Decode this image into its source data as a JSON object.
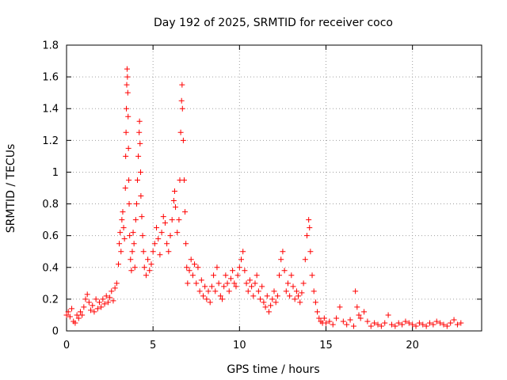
{
  "chart_data": {
    "type": "scatter",
    "title": "Day 192 of 2025, SRMTID for receiver coco",
    "xlabel": "GPS time / hours",
    "ylabel": "SRMTID / TECUs",
    "xlim": [
      0,
      24
    ],
    "ylim": [
      0,
      1.8
    ],
    "x_ticks": [
      0,
      5,
      10,
      15,
      20
    ],
    "x_tick_labels": [
      "0",
      "5",
      "10",
      "15",
      "20"
    ],
    "y_ticks": [
      0,
      0.2,
      0.4,
      0.6,
      0.8,
      1.0,
      1.2,
      1.4,
      1.6,
      1.8
    ],
    "y_tick_labels": [
      "0",
      "0.2",
      "0.4",
      "0.6",
      "0.8",
      "1",
      "1.2",
      "1.4",
      "1.6",
      "1.8"
    ],
    "grid": true,
    "marker": "+",
    "color": "#ff0000",
    "series": [
      {
        "name": "SRMTID",
        "points": [
          [
            0.0,
            0.1
          ],
          [
            0.1,
            0.12
          ],
          [
            0.2,
            0.09
          ],
          [
            0.3,
            0.14
          ],
          [
            0.4,
            0.06
          ],
          [
            0.5,
            0.05
          ],
          [
            0.6,
            0.1
          ],
          [
            0.7,
            0.08
          ],
          [
            0.8,
            0.12
          ],
          [
            0.9,
            0.1
          ],
          [
            1.0,
            0.15
          ],
          [
            1.1,
            0.2
          ],
          [
            1.2,
            0.23
          ],
          [
            1.3,
            0.18
          ],
          [
            1.4,
            0.13
          ],
          [
            1.5,
            0.16
          ],
          [
            1.6,
            0.12
          ],
          [
            1.7,
            0.2
          ],
          [
            1.8,
            0.14
          ],
          [
            1.9,
            0.18
          ],
          [
            2.0,
            0.15
          ],
          [
            2.1,
            0.2
          ],
          [
            2.2,
            0.17
          ],
          [
            2.3,
            0.22
          ],
          [
            2.4,
            0.18
          ],
          [
            2.5,
            0.21
          ],
          [
            2.6,
            0.25
          ],
          [
            2.7,
            0.19
          ],
          [
            2.8,
            0.27
          ],
          [
            2.9,
            0.3
          ],
          [
            3.0,
            0.42
          ],
          [
            3.05,
            0.55
          ],
          [
            3.1,
            0.62
          ],
          [
            3.15,
            0.5
          ],
          [
            3.2,
            0.7
          ],
          [
            3.25,
            0.75
          ],
          [
            3.3,
            0.65
          ],
          [
            3.35,
            0.58
          ],
          [
            3.4,
            0.9
          ],
          [
            3.42,
            1.1
          ],
          [
            3.44,
            1.25
          ],
          [
            3.46,
            1.4
          ],
          [
            3.48,
            1.55
          ],
          [
            3.5,
            1.65
          ],
          [
            3.52,
            1.6
          ],
          [
            3.54,
            1.5
          ],
          [
            3.56,
            1.35
          ],
          [
            3.58,
            1.15
          ],
          [
            3.6,
            0.95
          ],
          [
            3.62,
            0.8
          ],
          [
            3.65,
            0.6
          ],
          [
            3.7,
            0.45
          ],
          [
            3.75,
            0.38
          ],
          [
            3.8,
            0.5
          ],
          [
            3.85,
            0.62
          ],
          [
            3.9,
            0.55
          ],
          [
            3.95,
            0.4
          ],
          [
            4.0,
            0.7
          ],
          [
            4.05,
            0.8
          ],
          [
            4.1,
            0.95
          ],
          [
            4.15,
            1.1
          ],
          [
            4.2,
            1.25
          ],
          [
            4.22,
            1.32
          ],
          [
            4.25,
            1.18
          ],
          [
            4.28,
            1.0
          ],
          [
            4.3,
            0.85
          ],
          [
            4.35,
            0.72
          ],
          [
            4.4,
            0.6
          ],
          [
            4.45,
            0.5
          ],
          [
            4.5,
            0.4
          ],
          [
            4.6,
            0.35
          ],
          [
            4.7,
            0.45
          ],
          [
            4.8,
            0.38
          ],
          [
            4.9,
            0.42
          ],
          [
            5.0,
            0.5
          ],
          [
            5.1,
            0.55
          ],
          [
            5.2,
            0.65
          ],
          [
            5.3,
            0.58
          ],
          [
            5.4,
            0.48
          ],
          [
            5.5,
            0.62
          ],
          [
            5.6,
            0.72
          ],
          [
            5.7,
            0.68
          ],
          [
            5.8,
            0.55
          ],
          [
            5.9,
            0.5
          ],
          [
            6.0,
            0.6
          ],
          [
            6.1,
            0.7
          ],
          [
            6.2,
            0.82
          ],
          [
            6.25,
            0.88
          ],
          [
            6.3,
            0.78
          ],
          [
            6.4,
            0.62
          ],
          [
            6.5,
            0.7
          ],
          [
            6.55,
            0.95
          ],
          [
            6.6,
            1.25
          ],
          [
            6.65,
            1.45
          ],
          [
            6.68,
            1.55
          ],
          [
            6.7,
            1.4
          ],
          [
            6.75,
            1.2
          ],
          [
            6.8,
            0.95
          ],
          [
            6.85,
            0.75
          ],
          [
            6.9,
            0.55
          ],
          [
            6.95,
            0.4
          ],
          [
            7.0,
            0.3
          ],
          [
            7.1,
            0.38
          ],
          [
            7.2,
            0.45
          ],
          [
            7.3,
            0.35
          ],
          [
            7.4,
            0.42
          ],
          [
            7.5,
            0.3
          ],
          [
            7.6,
            0.4
          ],
          [
            7.7,
            0.25
          ],
          [
            7.8,
            0.32
          ],
          [
            7.9,
            0.22
          ],
          [
            8.0,
            0.28
          ],
          [
            8.1,
            0.2
          ],
          [
            8.2,
            0.25
          ],
          [
            8.3,
            0.18
          ],
          [
            8.4,
            0.28
          ],
          [
            8.5,
            0.35
          ],
          [
            8.6,
            0.25
          ],
          [
            8.7,
            0.4
          ],
          [
            8.8,
            0.3
          ],
          [
            8.9,
            0.22
          ],
          [
            9.0,
            0.2
          ],
          [
            9.1,
            0.28
          ],
          [
            9.2,
            0.35
          ],
          [
            9.3,
            0.3
          ],
          [
            9.4,
            0.25
          ],
          [
            9.5,
            0.33
          ],
          [
            9.6,
            0.38
          ],
          [
            9.7,
            0.3
          ],
          [
            9.8,
            0.28
          ],
          [
            9.9,
            0.35
          ],
          [
            10.0,
            0.4
          ],
          [
            10.1,
            0.45
          ],
          [
            10.2,
            0.5
          ],
          [
            10.3,
            0.38
          ],
          [
            10.4,
            0.3
          ],
          [
            10.5,
            0.25
          ],
          [
            10.6,
            0.32
          ],
          [
            10.7,
            0.28
          ],
          [
            10.8,
            0.22
          ],
          [
            10.9,
            0.3
          ],
          [
            11.0,
            0.35
          ],
          [
            11.1,
            0.25
          ],
          [
            11.2,
            0.2
          ],
          [
            11.3,
            0.28
          ],
          [
            11.4,
            0.18
          ],
          [
            11.5,
            0.15
          ],
          [
            11.6,
            0.22
          ],
          [
            11.7,
            0.12
          ],
          [
            11.8,
            0.16
          ],
          [
            11.9,
            0.2
          ],
          [
            12.0,
            0.25
          ],
          [
            12.1,
            0.18
          ],
          [
            12.2,
            0.22
          ],
          [
            12.3,
            0.35
          ],
          [
            12.4,
            0.45
          ],
          [
            12.5,
            0.5
          ],
          [
            12.6,
            0.38
          ],
          [
            12.7,
            0.25
          ],
          [
            12.8,
            0.3
          ],
          [
            12.9,
            0.22
          ],
          [
            13.0,
            0.35
          ],
          [
            13.1,
            0.28
          ],
          [
            13.2,
            0.2
          ],
          [
            13.3,
            0.25
          ],
          [
            13.4,
            0.22
          ],
          [
            13.5,
            0.18
          ],
          [
            13.6,
            0.24
          ],
          [
            13.7,
            0.3
          ],
          [
            13.8,
            0.45
          ],
          [
            13.9,
            0.6
          ],
          [
            14.0,
            0.7
          ],
          [
            14.05,
            0.65
          ],
          [
            14.1,
            0.5
          ],
          [
            14.2,
            0.35
          ],
          [
            14.3,
            0.25
          ],
          [
            14.4,
            0.18
          ],
          [
            14.5,
            0.12
          ],
          [
            14.6,
            0.08
          ],
          [
            14.7,
            0.06
          ],
          [
            14.8,
            0.05
          ],
          [
            14.9,
            0.08
          ],
          [
            15.0,
            0.05
          ],
          [
            15.2,
            0.06
          ],
          [
            15.4,
            0.04
          ],
          [
            15.6,
            0.08
          ],
          [
            15.8,
            0.15
          ],
          [
            16.0,
            0.06
          ],
          [
            16.2,
            0.04
          ],
          [
            16.4,
            0.07
          ],
          [
            16.6,
            0.03
          ],
          [
            16.7,
            0.25
          ],
          [
            16.8,
            0.15
          ],
          [
            16.9,
            0.1
          ],
          [
            17.0,
            0.08
          ],
          [
            17.2,
            0.12
          ],
          [
            17.4,
            0.06
          ],
          [
            17.6,
            0.03
          ],
          [
            17.8,
            0.05
          ],
          [
            18.0,
            0.04
          ],
          [
            18.2,
            0.03
          ],
          [
            18.4,
            0.05
          ],
          [
            18.6,
            0.1
          ],
          [
            18.8,
            0.04
          ],
          [
            19.0,
            0.03
          ],
          [
            19.2,
            0.05
          ],
          [
            19.4,
            0.04
          ],
          [
            19.6,
            0.06
          ],
          [
            19.8,
            0.05
          ],
          [
            20.0,
            0.04
          ],
          [
            20.2,
            0.03
          ],
          [
            20.4,
            0.05
          ],
          [
            20.6,
            0.04
          ],
          [
            20.8,
            0.03
          ],
          [
            21.0,
            0.05
          ],
          [
            21.2,
            0.04
          ],
          [
            21.4,
            0.06
          ],
          [
            21.6,
            0.05
          ],
          [
            21.8,
            0.04
          ],
          [
            22.0,
            0.03
          ],
          [
            22.2,
            0.05
          ],
          [
            22.4,
            0.07
          ],
          [
            22.6,
            0.04
          ],
          [
            22.8,
            0.05
          ]
        ]
      }
    ]
  }
}
